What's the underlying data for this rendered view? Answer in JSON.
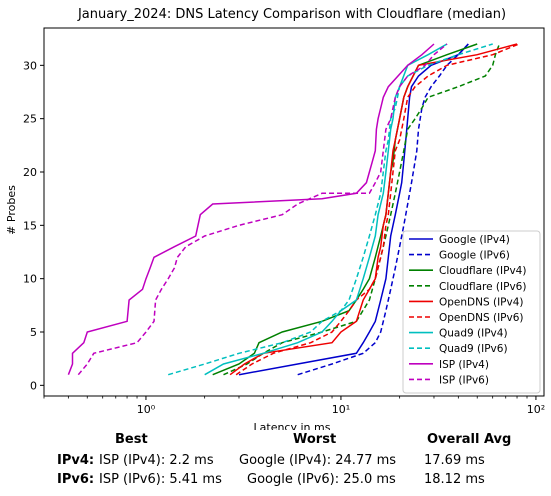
{
  "chart_data": {
    "type": "line",
    "title": "January_2024: DNS Latency Comparison with Cloudflare (median)",
    "xlabel": "Latency in ms",
    "ylabel": "# Probes",
    "xscale": "log",
    "xlim": [
      0.3,
      110
    ],
    "ylim": [
      -1,
      33.5
    ],
    "xticks": [
      {
        "v": 1,
        "label": "10⁰"
      },
      {
        "v": 10,
        "label": "10¹"
      },
      {
        "v": 100,
        "label": "10²"
      }
    ],
    "yticks": [
      0,
      5,
      10,
      15,
      20,
      25,
      30
    ],
    "grid": false,
    "legend_position": "bottom-right",
    "series": [
      {
        "name": "Google (IPv4)",
        "color": "#0000cc",
        "dash": "solid",
        "points": [
          [
            3.0,
            1
          ],
          [
            6,
            2
          ],
          [
            12,
            3
          ],
          [
            13,
            4
          ],
          [
            14,
            5
          ],
          [
            15,
            6
          ],
          [
            16,
            8
          ],
          [
            17,
            10
          ],
          [
            17.5,
            12
          ],
          [
            18,
            14
          ],
          [
            19,
            16
          ],
          [
            20,
            18
          ],
          [
            20.5,
            19
          ],
          [
            21,
            21
          ],
          [
            21.5,
            23
          ],
          [
            22,
            25
          ],
          [
            22.5,
            27
          ],
          [
            23,
            28
          ],
          [
            25,
            29
          ],
          [
            29,
            30
          ],
          [
            40,
            31
          ],
          [
            45,
            32
          ]
        ]
      },
      {
        "name": "Google (IPv6)",
        "color": "#0000cc",
        "dash": "dashed",
        "points": [
          [
            6,
            1
          ],
          [
            9,
            2
          ],
          [
            13,
            3
          ],
          [
            15,
            4
          ],
          [
            16,
            5
          ],
          [
            17,
            7
          ],
          [
            18,
            9
          ],
          [
            19,
            11
          ],
          [
            20,
            13
          ],
          [
            21,
            15
          ],
          [
            22,
            17
          ],
          [
            23,
            19
          ],
          [
            24,
            21
          ],
          [
            24.5,
            22
          ],
          [
            25,
            24
          ],
          [
            26,
            26
          ],
          [
            27,
            27
          ],
          [
            29,
            28
          ],
          [
            32,
            29
          ],
          [
            35,
            30
          ],
          [
            40,
            31
          ],
          [
            45,
            32
          ]
        ]
      },
      {
        "name": "Cloudflare (IPv4)",
        "color": "#008000",
        "dash": "solid",
        "points": [
          [
            2.2,
            1
          ],
          [
            3,
            2
          ],
          [
            3.6,
            3
          ],
          [
            3.8,
            4
          ],
          [
            5,
            5
          ],
          [
            8,
            6
          ],
          [
            11,
            7
          ],
          [
            12,
            8
          ],
          [
            13,
            9
          ],
          [
            14,
            10
          ],
          [
            15,
            12
          ],
          [
            16,
            14
          ],
          [
            17,
            16
          ],
          [
            17.5,
            18
          ],
          [
            18,
            20
          ],
          [
            18.5,
            21
          ],
          [
            19,
            23
          ],
          [
            20,
            25
          ],
          [
            21,
            27
          ],
          [
            22,
            28
          ],
          [
            25,
            30
          ],
          [
            35,
            31
          ],
          [
            50,
            32
          ]
        ]
      },
      {
        "name": "Cloudflare (IPv6)",
        "color": "#008000",
        "dash": "dashed",
        "points": [
          [
            2.5,
            1
          ],
          [
            3.3,
            2
          ],
          [
            4,
            3
          ],
          [
            5,
            4
          ],
          [
            8,
            5
          ],
          [
            12,
            6
          ],
          [
            14,
            8
          ],
          [
            15,
            10
          ],
          [
            16,
            12
          ],
          [
            17,
            14
          ],
          [
            18,
            16
          ],
          [
            19,
            18
          ],
          [
            20,
            20
          ],
          [
            21,
            22
          ],
          [
            22,
            24
          ],
          [
            24,
            25
          ],
          [
            26,
            26
          ],
          [
            28,
            27
          ],
          [
            40,
            28
          ],
          [
            55,
            29
          ],
          [
            60,
            30
          ],
          [
            62,
            31
          ],
          [
            65,
            32
          ]
        ]
      },
      {
        "name": "OpenDNS (IPv4)",
        "color": "#ee0000",
        "dash": "solid",
        "points": [
          [
            2.7,
            1
          ],
          [
            3.2,
            2
          ],
          [
            4,
            3
          ],
          [
            9,
            4
          ],
          [
            10,
            5
          ],
          [
            12,
            6
          ],
          [
            13,
            8
          ],
          [
            14,
            9
          ],
          [
            15,
            10
          ],
          [
            15.5,
            12
          ],
          [
            16,
            13
          ],
          [
            16.5,
            15
          ],
          [
            17,
            16
          ],
          [
            17.5,
            18
          ],
          [
            18,
            20
          ],
          [
            18.5,
            22
          ],
          [
            19,
            23
          ],
          [
            20,
            25
          ],
          [
            21,
            27
          ],
          [
            22,
            28
          ],
          [
            25,
            30
          ],
          [
            50,
            31
          ],
          [
            80,
            32
          ]
        ]
      },
      {
        "name": "OpenDNS (IPv6)",
        "color": "#ee0000",
        "dash": "dashed",
        "points": [
          [
            2.9,
            1
          ],
          [
            3.5,
            2
          ],
          [
            4.5,
            3
          ],
          [
            7,
            4
          ],
          [
            9,
            5
          ],
          [
            10,
            6
          ],
          [
            11,
            7
          ],
          [
            12,
            8
          ],
          [
            14,
            9
          ],
          [
            15,
            10
          ],
          [
            16,
            12
          ],
          [
            16.5,
            13
          ],
          [
            17,
            15
          ],
          [
            17.5,
            16
          ],
          [
            18,
            18
          ],
          [
            18.5,
            20
          ],
          [
            19,
            22
          ],
          [
            20,
            23
          ],
          [
            21,
            25
          ],
          [
            22,
            27
          ],
          [
            24,
            28
          ],
          [
            28,
            29
          ],
          [
            35,
            30
          ],
          [
            60,
            31
          ],
          [
            82,
            32
          ]
        ]
      },
      {
        "name": "Quad9 (IPv4)",
        "color": "#00bfbf",
        "dash": "solid",
        "points": [
          [
            2.0,
            1
          ],
          [
            2.5,
            2
          ],
          [
            4,
            3
          ],
          [
            6,
            4
          ],
          [
            8,
            5
          ],
          [
            9,
            6
          ],
          [
            10,
            7
          ],
          [
            12,
            8
          ],
          [
            13,
            10
          ],
          [
            14,
            12
          ],
          [
            15,
            14
          ],
          [
            15.5,
            16
          ],
          [
            16,
            17
          ],
          [
            16.5,
            18
          ],
          [
            17,
            20
          ],
          [
            17.5,
            22
          ],
          [
            18,
            24
          ],
          [
            18.5,
            25
          ],
          [
            19,
            27
          ],
          [
            20,
            28
          ],
          [
            22,
            30
          ],
          [
            28,
            31
          ],
          [
            35,
            32
          ]
        ]
      },
      {
        "name": "Quad9 (IPv6)",
        "color": "#00bfbf",
        "dash": "dashed",
        "points": [
          [
            1.3,
            1
          ],
          [
            2,
            2
          ],
          [
            3,
            3
          ],
          [
            5,
            4
          ],
          [
            7,
            5
          ],
          [
            8,
            6
          ],
          [
            10,
            7
          ],
          [
            11,
            8
          ],
          [
            12,
            10
          ],
          [
            13,
            12
          ],
          [
            14,
            14
          ],
          [
            15,
            16
          ],
          [
            16,
            18
          ],
          [
            16.5,
            20
          ],
          [
            17,
            22
          ],
          [
            17.5,
            23
          ],
          [
            18,
            25
          ],
          [
            19,
            26
          ],
          [
            20,
            28
          ],
          [
            22,
            29
          ],
          [
            28,
            30
          ],
          [
            40,
            31
          ],
          [
            60,
            32
          ]
        ]
      },
      {
        "name": "ISP (IPv4)",
        "color": "#bf00bf",
        "dash": "solid",
        "points": [
          [
            0.4,
            1
          ],
          [
            0.42,
            2
          ],
          [
            0.42,
            3
          ],
          [
            0.48,
            4
          ],
          [
            0.5,
            5
          ],
          [
            0.8,
            6
          ],
          [
            0.82,
            8
          ],
          [
            0.96,
            9
          ],
          [
            1.0,
            10
          ],
          [
            1.05,
            11
          ],
          [
            1.1,
            12
          ],
          [
            1.4,
            13
          ],
          [
            1.8,
            14
          ],
          [
            1.85,
            15
          ],
          [
            1.9,
            16
          ],
          [
            2.2,
            17
          ],
          [
            8,
            17.5
          ],
          [
            12,
            18
          ],
          [
            13.5,
            19
          ],
          [
            14,
            20
          ],
          [
            14.5,
            21
          ],
          [
            15,
            22
          ],
          [
            15.2,
            24
          ],
          [
            15.5,
            25
          ],
          [
            16,
            26
          ],
          [
            16.5,
            27
          ],
          [
            17.5,
            28
          ],
          [
            22,
            30
          ],
          [
            26,
            31
          ],
          [
            30,
            32
          ]
        ]
      },
      {
        "name": "ISP (IPv6)",
        "color": "#bf00bf",
        "dash": "dashed",
        "points": [
          [
            0.45,
            1
          ],
          [
            0.5,
            2
          ],
          [
            0.54,
            3
          ],
          [
            0.9,
            4
          ],
          [
            1.0,
            5
          ],
          [
            1.1,
            6
          ],
          [
            1.12,
            8
          ],
          [
            1.2,
            9
          ],
          [
            1.3,
            10
          ],
          [
            1.4,
            11
          ],
          [
            1.45,
            12
          ],
          [
            1.6,
            13
          ],
          [
            2.0,
            14
          ],
          [
            3.0,
            15
          ],
          [
            5,
            16
          ],
          [
            6,
            17
          ],
          [
            8,
            18
          ],
          [
            14,
            18
          ],
          [
            15,
            19
          ],
          [
            16,
            20
          ],
          [
            16.5,
            22
          ],
          [
            17,
            24
          ],
          [
            18,
            25
          ],
          [
            19,
            27
          ],
          [
            20,
            28
          ],
          [
            22,
            29
          ],
          [
            27,
            30
          ],
          [
            30,
            31
          ],
          [
            35,
            32
          ]
        ]
      }
    ]
  },
  "stats": {
    "headers": {
      "best": "Best",
      "worst": "Worst",
      "avg": "Overall Avg"
    },
    "rows": [
      {
        "label": "IPv4:",
        "best": "ISP (IPv4): 2.2 ms",
        "worst": "Google (IPv4): 24.77 ms",
        "avg": "17.69 ms"
      },
      {
        "label": "IPv6:",
        "best": "ISP (IPv6): 5.41 ms",
        "worst": "Google (IPv6): 25.0 ms",
        "avg": "18.12 ms"
      }
    ]
  }
}
